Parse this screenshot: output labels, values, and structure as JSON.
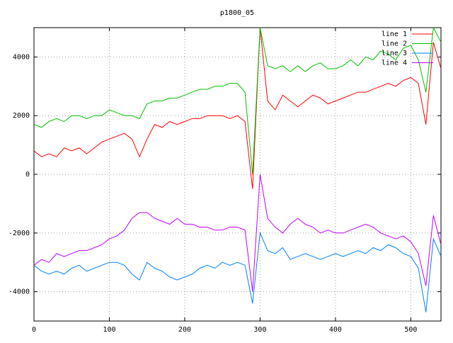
{
  "chart_data": {
    "type": "line",
    "title": "p1800_05",
    "x": [
      0,
      10,
      20,
      30,
      40,
      50,
      60,
      70,
      80,
      90,
      100,
      110,
      120,
      130,
      140,
      150,
      160,
      170,
      180,
      190,
      200,
      210,
      220,
      230,
      240,
      250,
      260,
      270,
      280,
      290,
      300,
      310,
      320,
      330,
      340,
      350,
      360,
      370,
      380,
      390,
      400,
      410,
      420,
      430,
      440,
      450,
      460,
      470,
      480,
      490,
      500,
      510,
      520,
      530,
      540
    ],
    "series": [
      {
        "name": "line 1",
        "color": "#ff0000",
        "values": [
          800,
          600,
          700,
          600,
          900,
          800,
          900,
          700,
          900,
          1100,
          1200,
          1300,
          1400,
          1200,
          600,
          1200,
          1700,
          1600,
          1800,
          1700,
          1800,
          1900,
          1900,
          2000,
          2000,
          2000,
          1900,
          2000,
          1800,
          -500,
          5000,
          2500,
          2200,
          2700,
          2500,
          2300,
          2500,
          2700,
          2600,
          2400,
          2500,
          2600,
          2700,
          2800,
          2800,
          2900,
          3000,
          3100,
          3000,
          3200,
          3300,
          3100,
          1700,
          4500,
          3600
        ]
      },
      {
        "name": "line 2",
        "color": "#00c000",
        "values": [
          1700,
          1600,
          1800,
          1900,
          1800,
          2000,
          2000,
          1900,
          2000,
          2000,
          2200,
          2100,
          2000,
          2000,
          1900,
          2400,
          2500,
          2500,
          2600,
          2600,
          2700,
          2800,
          2900,
          2900,
          3000,
          3000,
          3100,
          3100,
          2800,
          0,
          5000,
          3700,
          3600,
          3700,
          3500,
          3700,
          3500,
          3700,
          3800,
          3600,
          3600,
          3700,
          3900,
          3700,
          4000,
          3900,
          4200,
          4100,
          3900,
          4300,
          4400,
          3900,
          2800,
          5000,
          4500
        ]
      },
      {
        "name": "line 3",
        "color": "#0080ff",
        "values": [
          -3100,
          -3300,
          -3400,
          -3300,
          -3400,
          -3200,
          -3100,
          -3300,
          -3200,
          -3100,
          -3000,
          -3000,
          -3100,
          -3400,
          -3600,
          -3000,
          -3200,
          -3300,
          -3500,
          -3600,
          -3500,
          -3400,
          -3200,
          -3100,
          -3200,
          -3000,
          -3100,
          -3000,
          -3100,
          -4400,
          -2000,
          -2600,
          -2700,
          -2500,
          -2900,
          -2800,
          -2700,
          -2800,
          -2900,
          -2800,
          -2700,
          -2800,
          -2700,
          -2600,
          -2700,
          -2500,
          -2600,
          -2400,
          -2500,
          -2700,
          -2800,
          -3200,
          -4700,
          -2200,
          -2800
        ]
      },
      {
        "name": "line 4",
        "color": "#c000ff",
        "values": [
          -3100,
          -2900,
          -3000,
          -2700,
          -2800,
          -2700,
          -2600,
          -2600,
          -2500,
          -2400,
          -2200,
          -2100,
          -1900,
          -1500,
          -1300,
          -1300,
          -1500,
          -1600,
          -1700,
          -1500,
          -1700,
          -1700,
          -1800,
          -1800,
          -1900,
          -1900,
          -1800,
          -1800,
          -1900,
          -4000,
          0,
          -1500,
          -1800,
          -2000,
          -1700,
          -1500,
          -1700,
          -1800,
          -2000,
          -1900,
          -2000,
          -2000,
          -1900,
          -1800,
          -1700,
          -1800,
          -2000,
          -2100,
          -2200,
          -2100,
          -2300,
          -2700,
          -3800,
          -1400,
          -2400
        ]
      }
    ],
    "xlim": [
      0,
      540
    ],
    "ylim": [
      -5000,
      5000
    ],
    "xticks": [
      0,
      100,
      200,
      300,
      400,
      500
    ],
    "yticks": [
      -4000,
      -2000,
      0,
      2000,
      4000
    ],
    "grid": true,
    "legend": "upper right"
  }
}
